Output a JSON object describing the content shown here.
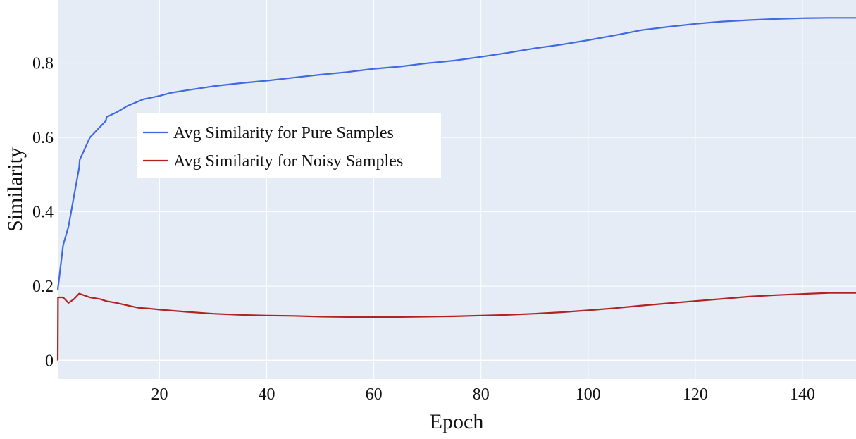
{
  "chart_data": {
    "type": "line",
    "title": "",
    "xlabel": "Epoch",
    "ylabel": "Similarity",
    "xlim": [
      1,
      150
    ],
    "ylim": [
      -0.05,
      0.97
    ],
    "x_ticks": [
      20,
      40,
      60,
      80,
      100,
      120,
      140
    ],
    "y_ticks": [
      0,
      0.2,
      0.4,
      0.6,
      0.8
    ],
    "x_tick_labels": [
      "20",
      "40",
      "60",
      "80",
      "100",
      "120",
      "140"
    ],
    "y_tick_labels": [
      "0",
      "0.2",
      "0.4",
      "0.6",
      "0.8"
    ],
    "grid": true,
    "plot_background": "#e5ecf6",
    "grid_color": "#ffffff",
    "legend_placement": "upper-left",
    "series": [
      {
        "name": "Avg Similarity for Pure Samples",
        "color": "#4169e1",
        "points": [
          [
            1,
            0.19
          ],
          [
            2,
            0.31
          ],
          [
            3,
            0.36
          ],
          [
            4,
            0.44
          ],
          [
            5,
            0.52
          ],
          [
            5.1,
            0.54
          ],
          [
            7,
            0.6
          ],
          [
            8,
            0.615
          ],
          [
            10,
            0.645
          ],
          [
            10.1,
            0.655
          ],
          [
            12,
            0.668
          ],
          [
            14,
            0.685
          ],
          [
            16,
            0.697
          ],
          [
            16.5,
            0.7
          ],
          [
            17,
            0.703
          ],
          [
            20,
            0.712
          ],
          [
            22,
            0.72
          ],
          [
            25,
            0.727
          ],
          [
            30,
            0.738
          ],
          [
            35,
            0.746
          ],
          [
            40,
            0.753
          ],
          [
            45,
            0.761
          ],
          [
            50,
            0.769
          ],
          [
            55,
            0.776
          ],
          [
            60,
            0.785
          ],
          [
            65,
            0.791
          ],
          [
            70,
            0.8
          ],
          [
            75,
            0.807
          ],
          [
            80,
            0.817
          ],
          [
            85,
            0.828
          ],
          [
            90,
            0.84
          ],
          [
            95,
            0.85
          ],
          [
            100,
            0.862
          ],
          [
            105,
            0.875
          ],
          [
            110,
            0.889
          ],
          [
            115,
            0.898
          ],
          [
            120,
            0.906
          ],
          [
            125,
            0.912
          ],
          [
            130,
            0.916
          ],
          [
            135,
            0.919
          ],
          [
            140,
            0.921
          ],
          [
            145,
            0.922
          ],
          [
            150,
            0.922
          ]
        ]
      },
      {
        "name": "Avg Similarity for Noisy Samples",
        "color": "#b22222",
        "points": [
          [
            1,
            0.0
          ],
          [
            1.05,
            0.17
          ],
          [
            2,
            0.17
          ],
          [
            3,
            0.155
          ],
          [
            4,
            0.165
          ],
          [
            5,
            0.18
          ],
          [
            6,
            0.175
          ],
          [
            7,
            0.17
          ],
          [
            9,
            0.165
          ],
          [
            10,
            0.16
          ],
          [
            12,
            0.155
          ],
          [
            15,
            0.145
          ],
          [
            16,
            0.142
          ],
          [
            18,
            0.14
          ],
          [
            20,
            0.137
          ],
          [
            25,
            0.131
          ],
          [
            30,
            0.126
          ],
          [
            35,
            0.123
          ],
          [
            40,
            0.121
          ],
          [
            45,
            0.12
          ],
          [
            50,
            0.118
          ],
          [
            55,
            0.117
          ],
          [
            60,
            0.117
          ],
          [
            65,
            0.117
          ],
          [
            70,
            0.118
          ],
          [
            75,
            0.119
          ],
          [
            80,
            0.121
          ],
          [
            85,
            0.123
          ],
          [
            90,
            0.126
          ],
          [
            95,
            0.13
          ],
          [
            100,
            0.135
          ],
          [
            105,
            0.141
          ],
          [
            110,
            0.148
          ],
          [
            115,
            0.154
          ],
          [
            120,
            0.16
          ],
          [
            125,
            0.166
          ],
          [
            130,
            0.172
          ],
          [
            135,
            0.176
          ],
          [
            140,
            0.179
          ],
          [
            145,
            0.182
          ],
          [
            150,
            0.182
          ]
        ]
      }
    ]
  }
}
